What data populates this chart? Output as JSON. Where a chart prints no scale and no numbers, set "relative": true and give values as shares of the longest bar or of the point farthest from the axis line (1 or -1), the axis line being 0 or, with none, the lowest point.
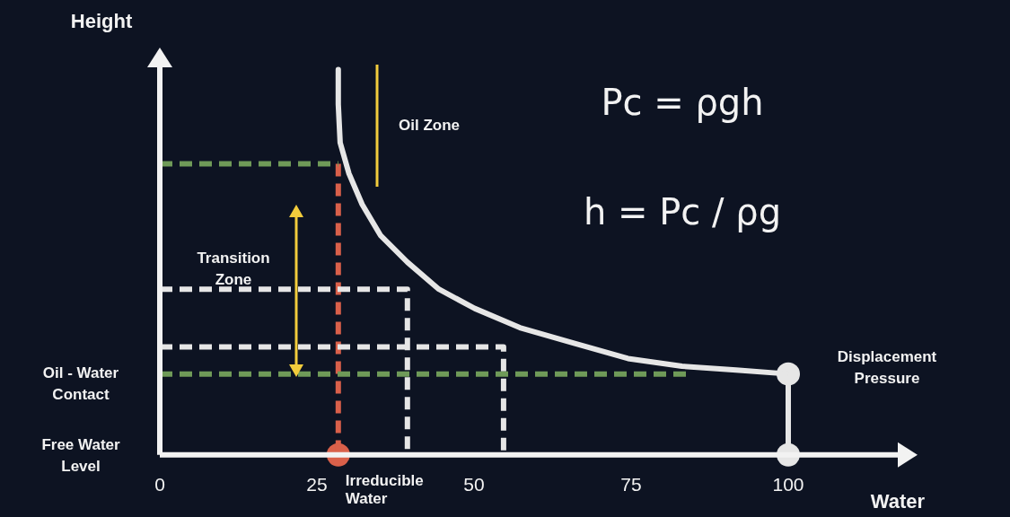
{
  "chart_data": {
    "type": "line",
    "relative": true,
    "xlabel": "Water",
    "ylabel": "Height",
    "xlim": [
      0,
      100
    ],
    "xticks": [
      0,
      25,
      50,
      75,
      100
    ],
    "tick_labels": "x",
    "legend": false,
    "series": [
      {
        "color": "#e6e6e6",
        "line_style": "solid",
        "marker": "none",
        "x": [
          28.4,
          28.4,
          28.7,
          30.1,
          32.2,
          35.1,
          39.4,
          44.4,
          50.1,
          57.3,
          65.9,
          74.5,
          83.1,
          91.7,
          100
        ],
        "values": [
          1.0,
          0.91,
          0.81,
          0.73,
          0.65,
          0.57,
          0.5,
          0.43,
          0.38,
          0.33,
          0.29,
          0.25,
          0.23,
          0.22,
          0.21
        ]
      },
      {
        "color": "#6f9a58",
        "line_style": "dashed",
        "marker": "none",
        "x": [
          0,
          28.4
        ],
        "values": [
          0.755,
          0.755
        ]
      },
      {
        "color": "#6f9a58",
        "line_style": "dashed",
        "marker": "none",
        "x": [
          0,
          84
        ],
        "values": [
          0.21,
          0.21
        ]
      },
      {
        "color": "#e6e6e6",
        "line_style": "dashed",
        "marker": "none",
        "x": [
          0,
          39.4,
          39.4
        ],
        "values": [
          0.43,
          0.43,
          0
        ]
      },
      {
        "color": "#e6e6e6",
        "line_style": "dashed",
        "marker": "none",
        "x": [
          0,
          54.7,
          54.7
        ],
        "values": [
          0.28,
          0.28,
          0
        ]
      },
      {
        "color": "#d9604a",
        "line_style": "dashed",
        "marker": "none",
        "x": [
          28.4,
          28.4
        ],
        "values": [
          0.755,
          0
        ]
      },
      {
        "color": "#e6e6e6",
        "line_style": "solid",
        "marker": "circle",
        "x": [
          100,
          100
        ],
        "values": [
          0.21,
          0
        ]
      },
      {
        "color": "#d9604a",
        "type": "scatter",
        "marker": "circle",
        "x": [
          28.4
        ],
        "values": [
          0
        ]
      }
    ],
    "annotations": [
      "Pc = ρgh",
      "h = Pc / ρg",
      "Oil Zone",
      "Transition Zone",
      "Oil - Water Contact",
      "Free Water Level",
      "Displacement Pressure",
      {
        "text": "Irreducible Water",
        "x": 28.4,
        "y": 0
      }
    ]
  }
}
